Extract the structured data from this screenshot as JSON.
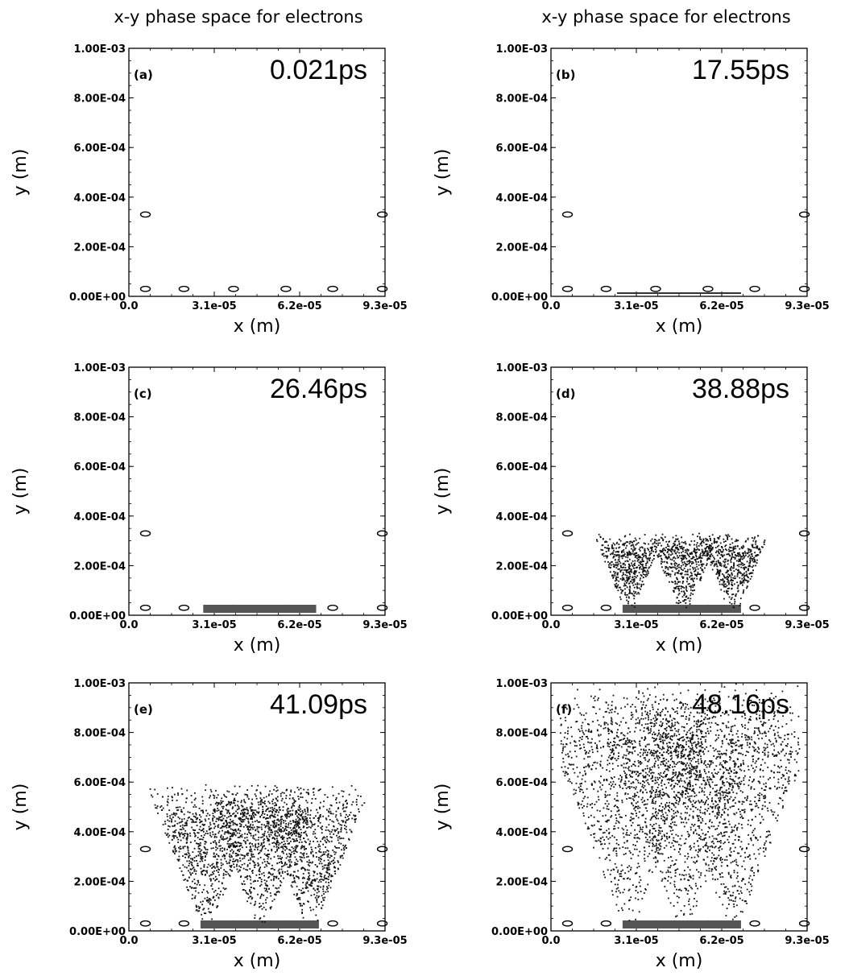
{
  "figure": {
    "column_titles": [
      "x-y phase space for electrons",
      "x-y phase space for electrons"
    ]
  },
  "chart_data": [
    {
      "type": "scatter",
      "panel": "(a)",
      "time_label": "0.021ps",
      "xlabel": "x (m)",
      "ylabel": "y (m)",
      "xlim": [
        0,
        9.3e-05
      ],
      "ylim": [
        0,
        0.001
      ],
      "x_ticks": [
        "0.0",
        "3.1e-05",
        "6.2e-05",
        "9.3e-05"
      ],
      "y_ticks": [
        "0.00E+00",
        "2.00E-04",
        "4.00E-04",
        "6.00E-04",
        "8.00E-04",
        "1.00E-03"
      ],
      "electron_cloud": {
        "n_points": 0,
        "sources_x": [],
        "max_height": 0,
        "bottom_band_xlim": null
      }
    },
    {
      "type": "scatter",
      "panel": "(b)",
      "time_label": "17.55ps",
      "xlabel": "x (m)",
      "ylabel": "y (m)",
      "xlim": [
        0,
        9.3e-05
      ],
      "ylim": [
        0,
        0.001
      ],
      "x_ticks": [
        "0.0",
        "3.1e-05",
        "6.2e-05",
        "9.3e-05"
      ],
      "y_ticks": [
        "0.00E+00",
        "2.00E-04",
        "4.00E-04",
        "6.00E-04",
        "8.00E-04",
        "1.00E-03"
      ],
      "electron_cloud": {
        "n_points": 0,
        "sources_x": [],
        "max_height": 0,
        "bottom_band_xlim": [
          2.4e-05,
          6.9e-05
        ]
      }
    },
    {
      "type": "scatter",
      "panel": "(c)",
      "time_label": "26.46ps",
      "xlabel": "x (m)",
      "ylabel": "y (m)",
      "xlim": [
        0,
        9.3e-05
      ],
      "ylim": [
        0,
        0.001
      ],
      "x_ticks": [
        "0.0",
        "3.1e-05",
        "6.2e-05",
        "9.3e-05"
      ],
      "y_ticks": [
        "0.00E+00",
        "2.00E-04",
        "4.00E-04",
        "6.00E-04",
        "8.00E-04",
        "1.00E-03"
      ],
      "electron_cloud": {
        "n_points": 0,
        "sources_x": [],
        "max_height": 0,
        "bottom_band_xlim": [
          2.7e-05,
          6.8e-05
        ]
      }
    },
    {
      "type": "scatter",
      "panel": "(d)",
      "time_label": "38.88ps",
      "xlabel": "x (m)",
      "ylabel": "y (m)",
      "xlim": [
        0,
        9.3e-05
      ],
      "ylim": [
        0,
        0.001
      ],
      "x_ticks": [
        "0.0",
        "3.1e-05",
        "6.2e-05",
        "9.3e-05"
      ],
      "y_ticks": [
        "0.00E+00",
        "2.00E-04",
        "4.00E-04",
        "6.00E-04",
        "8.00E-04",
        "1.00E-03"
      ],
      "electron_cloud": {
        "n_points": 1500,
        "sources_x": [
          2.8e-05,
          4.8e-05,
          6.6e-05
        ],
        "max_height": 0.00034,
        "bottom_band_xlim": [
          2.6e-05,
          6.9e-05
        ]
      }
    },
    {
      "type": "scatter",
      "panel": "(e)",
      "time_label": "41.09ps",
      "xlabel": "x (m)",
      "ylabel": "y (m)",
      "xlim": [
        0,
        9.3e-05
      ],
      "ylim": [
        0,
        0.001
      ],
      "x_ticks": [
        "0.0",
        "3.1e-05",
        "6.2e-05",
        "9.3e-05"
      ],
      "y_ticks": [
        "0.00E+00",
        "2.00E-04",
        "4.00E-04",
        "6.00E-04",
        "8.00E-04",
        "1.00E-03"
      ],
      "electron_cloud": {
        "n_points": 2400,
        "sources_x": [
          2.8e-05,
          4.8e-05,
          6.6e-05
        ],
        "max_height": 0.0006,
        "bottom_band_xlim": [
          2.6e-05,
          6.9e-05
        ]
      }
    },
    {
      "type": "scatter",
      "panel": "(f)",
      "time_label": "48.16ps",
      "xlabel": "x (m)",
      "ylabel": "y (m)",
      "xlim": [
        0,
        9.3e-05
      ],
      "ylim": [
        0,
        0.001
      ],
      "x_ticks": [
        "0.0",
        "3.1e-05",
        "6.2e-05",
        "9.3e-05"
      ],
      "y_ticks": [
        "0.00E+00",
        "2.00E-04",
        "4.00E-04",
        "6.00E-04",
        "8.00E-04",
        "1.00E-03"
      ],
      "electron_cloud": {
        "n_points": 3300,
        "sources_x": [
          2.8e-05,
          4.8e-05,
          6.6e-05
        ],
        "max_height": 0.001,
        "bottom_band_xlim": [
          2.6e-05,
          6.9e-05
        ]
      }
    }
  ]
}
